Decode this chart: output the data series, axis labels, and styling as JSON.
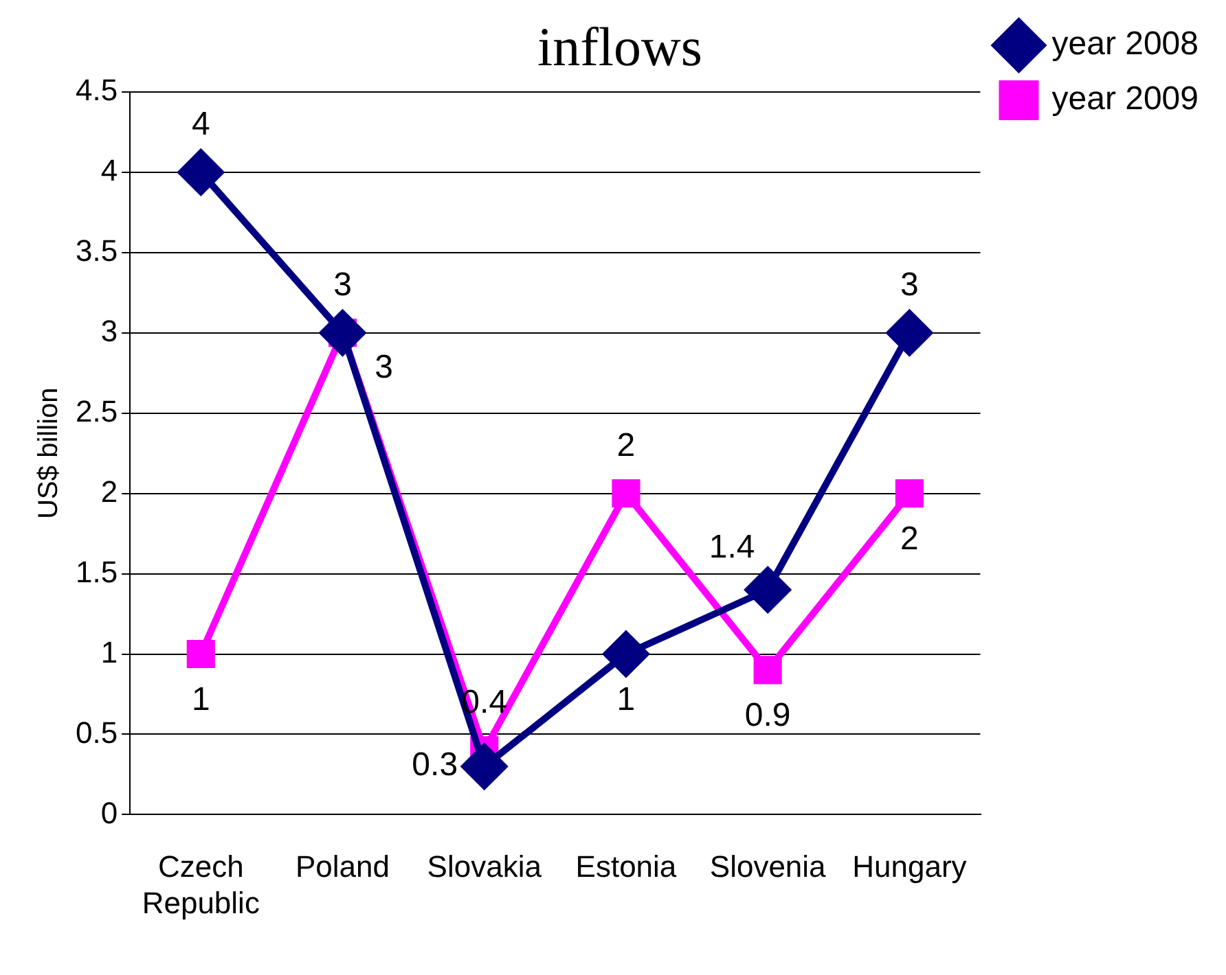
{
  "chart_data": {
    "type": "line",
    "title": "inflows",
    "ylabel": "US$ billion",
    "categories": [
      "Czech Republic",
      "Poland",
      "Slovakia",
      "Estonia",
      "Slovenia",
      "Hungary"
    ],
    "series": [
      {
        "name": "year 2008",
        "color": "#000080",
        "marker": "diamond",
        "values": [
          4,
          3,
          0.3,
          1,
          1.4,
          3
        ]
      },
      {
        "name": "year 2009",
        "color": "#ff00ff",
        "marker": "square",
        "values": [
          1,
          3,
          0.4,
          2,
          0.9,
          2
        ]
      }
    ],
    "ylim": [
      0,
      4.5
    ],
    "yticks": [
      0,
      0.5,
      1,
      1.5,
      2,
      2.5,
      3,
      3.5,
      4,
      4.5
    ],
    "grid": "y",
    "legend": "top right",
    "data_labels": true,
    "line_style": "solid"
  }
}
